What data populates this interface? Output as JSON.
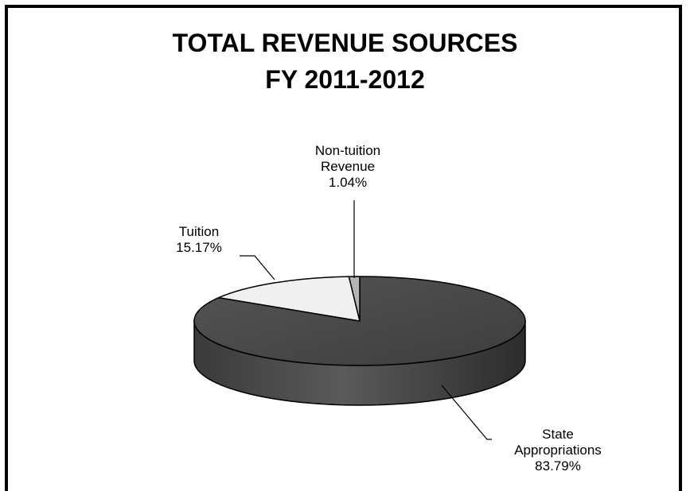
{
  "chart_data": {
    "type": "pie",
    "title_lines": [
      "TOTAL REVENUE SOURCES",
      "FY 2011-2012"
    ],
    "slices": [
      {
        "name": "State Appropriations",
        "label_lines": [
          "State",
          "Appropriations"
        ],
        "value": 83.79,
        "value_label": "83.79%",
        "color": "#4a4a4a"
      },
      {
        "name": "Tuition",
        "label_lines": [
          "Tuition"
        ],
        "value": 15.17,
        "value_label": "15.17%",
        "color": "#f0f0f0"
      },
      {
        "name": "Non-tuition Revenue",
        "label_lines": [
          "Non-tuition",
          "Revenue"
        ],
        "value": 1.04,
        "value_label": "1.04%",
        "color": "#b5b5b5"
      }
    ],
    "style": "3d-pie",
    "legend": "none"
  }
}
